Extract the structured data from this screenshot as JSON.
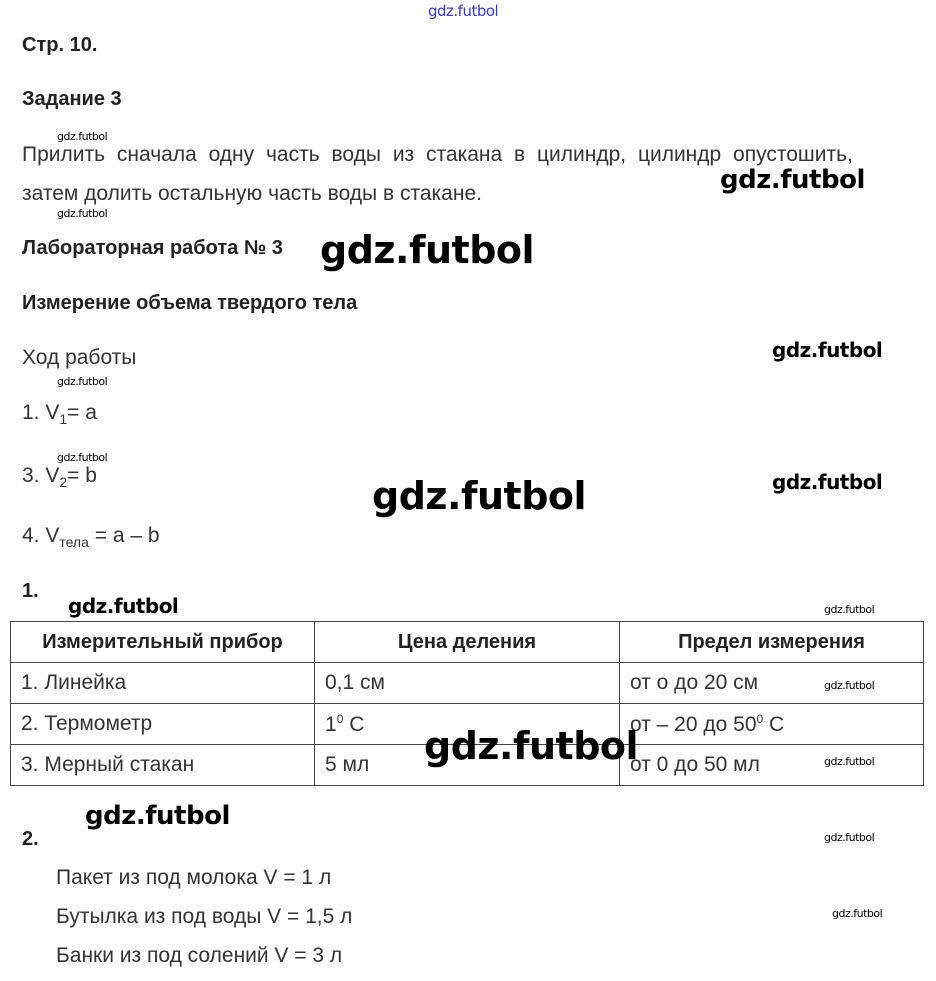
{
  "watermark": "gdz.futbol",
  "page_ref": "Стр. 10.",
  "task_title": "Задание 3",
  "task_text_line1": "Прилить сначала одну часть воды из стакана в цилиндр, цилиндр опустошить,",
  "task_text_line2": "затем долить остальную часть воды в стакане.",
  "lab_title": "Лабораторная работа № 3",
  "lab_subtitle": "Измерение объема твердого тела",
  "procedure_title": "Ход работы",
  "steps": [
    {
      "num": "1. V",
      "sub": "1",
      "rest": "= a"
    },
    {
      "num": "3. V",
      "sub": "2",
      "rest": "= b"
    },
    {
      "num": "4. V",
      "sub": "тела",
      "rest": " = a – b"
    }
  ],
  "section1_label": "1.",
  "table": {
    "headers": [
      "Измерительный прибор",
      "Цена деления",
      "Предел измерения"
    ],
    "rows": [
      {
        "device": "1.  Линейка",
        "division": "0,1 см",
        "division_sup": "",
        "division_tail": "",
        "limit": "от о до 20 см",
        "limit_sup": "",
        "limit_tail": ""
      },
      {
        "device": "2.  Термометр",
        "division": "1",
        "division_sup": "0",
        "division_tail": " C",
        "limit": "от – 20 до 50",
        "limit_sup": "0",
        "limit_tail": " C"
      },
      {
        "device": "3.  Мерный стакан",
        "division": "5 мл",
        "division_sup": "",
        "division_tail": "",
        "limit": "от 0 до 50 мл",
        "limit_sup": "",
        "limit_tail": ""
      }
    ]
  },
  "section2_label": "2.",
  "containers": [
    "Пакет из под молока V = 1 л",
    "Бутылка из под воды V = 1,5 л",
    "Банки из под солений V = 3 л"
  ],
  "colors": {
    "top_watermark": "#3a3ab0",
    "text": "#333333"
  }
}
